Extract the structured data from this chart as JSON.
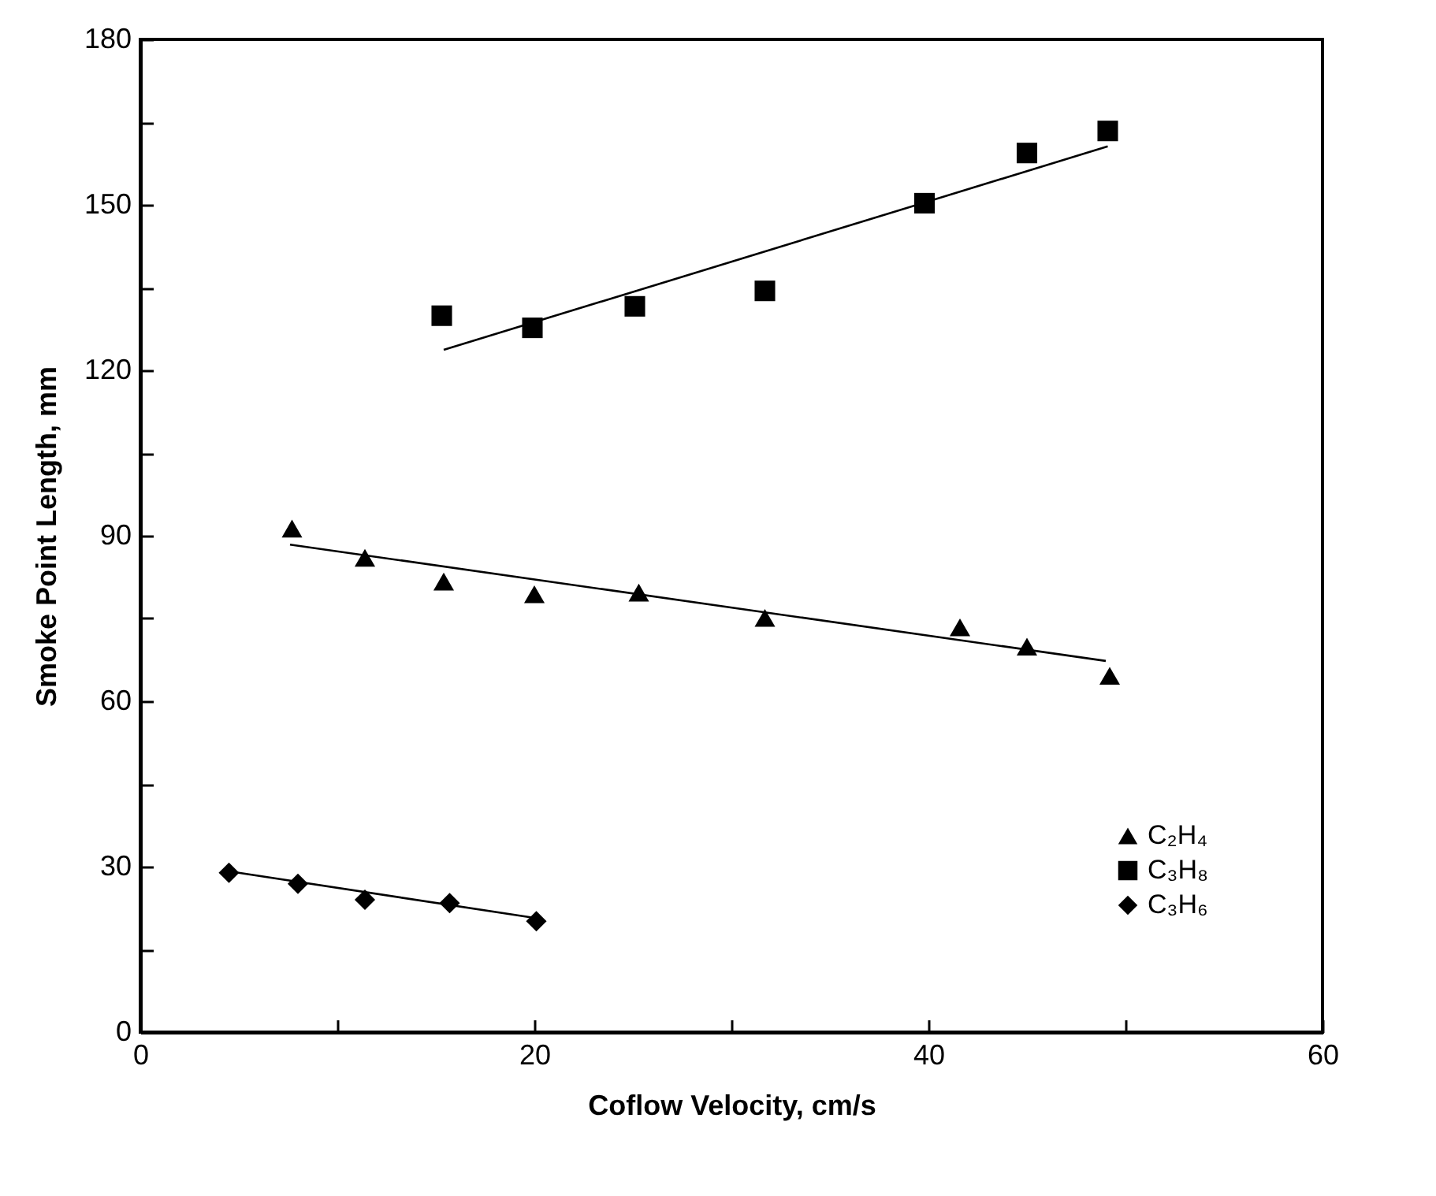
{
  "chart_data": {
    "type": "scatter",
    "xlabel": "Coflow Velocity, cm/s",
    "ylabel": "Smoke Point Length, mm",
    "xlim": [
      0,
      60
    ],
    "xticks": [
      0,
      {
        "value": 10,
        "label": null
      },
      20,
      {
        "value": 30,
        "label": null
      },
      40,
      {
        "value": 50,
        "label": null
      },
      60
    ],
    "ylim": [
      0,
      180
    ],
    "yticks": [
      0,
      {
        "value": 15,
        "label": null
      },
      30,
      {
        "value": 45,
        "label": null
      },
      60,
      {
        "value": 75,
        "label": null
      },
      90,
      {
        "value": 105,
        "label": null
      },
      120,
      {
        "value": 135,
        "label": null
      },
      150,
      {
        "value": 165,
        "label": null
      },
      180
    ],
    "grid": false,
    "legend": "bottom right",
    "series": [
      {
        "name": "C₂H₄",
        "color": "#000000",
        "marker": "triangle",
        "x": [
          7.7,
          11.4,
          15.4,
          20.0,
          25.3,
          31.7,
          41.6,
          45.0,
          49.2
        ],
        "values": [
          91.3,
          86,
          81.7,
          79.4,
          79.7,
          75.1,
          73.4,
          69.9,
          64.6
        ]
      },
      {
        "name": "C₃H₈",
        "color": "#000000",
        "marker": "square",
        "x": [
          15.3,
          19.9,
          25.1,
          31.7,
          39.8,
          45.0,
          49.1
        ],
        "values": [
          129.9,
          127.7,
          131.6,
          134.4,
          150.3,
          159.4,
          163.4
        ]
      },
      {
        "name": "C₃H₆",
        "color": "#000000",
        "marker": "diamond",
        "x": [
          4.5,
          8.0,
          11.4,
          15.7,
          20.1
        ],
        "values": [
          28.9,
          26.9,
          24.0,
          23.4,
          20.1
        ]
      },
      {
        "type": "line",
        "color": "#000000",
        "marker": "none",
        "line_style": "solid",
        "x": [
          7.6,
          49.0
        ],
        "values": [
          88.4,
          67.3
        ]
      },
      {
        "type": "line",
        "color": "#000000",
        "marker": "none",
        "line_style": "solid",
        "x": [
          15.4,
          49.1
        ],
        "values": [
          123.7,
          160.6
        ]
      },
      {
        "type": "line",
        "color": "#000000",
        "marker": "none",
        "line_style": "solid",
        "x": [
          4.6,
          20.2
        ],
        "values": [
          29.1,
          20.6
        ]
      }
    ]
  }
}
